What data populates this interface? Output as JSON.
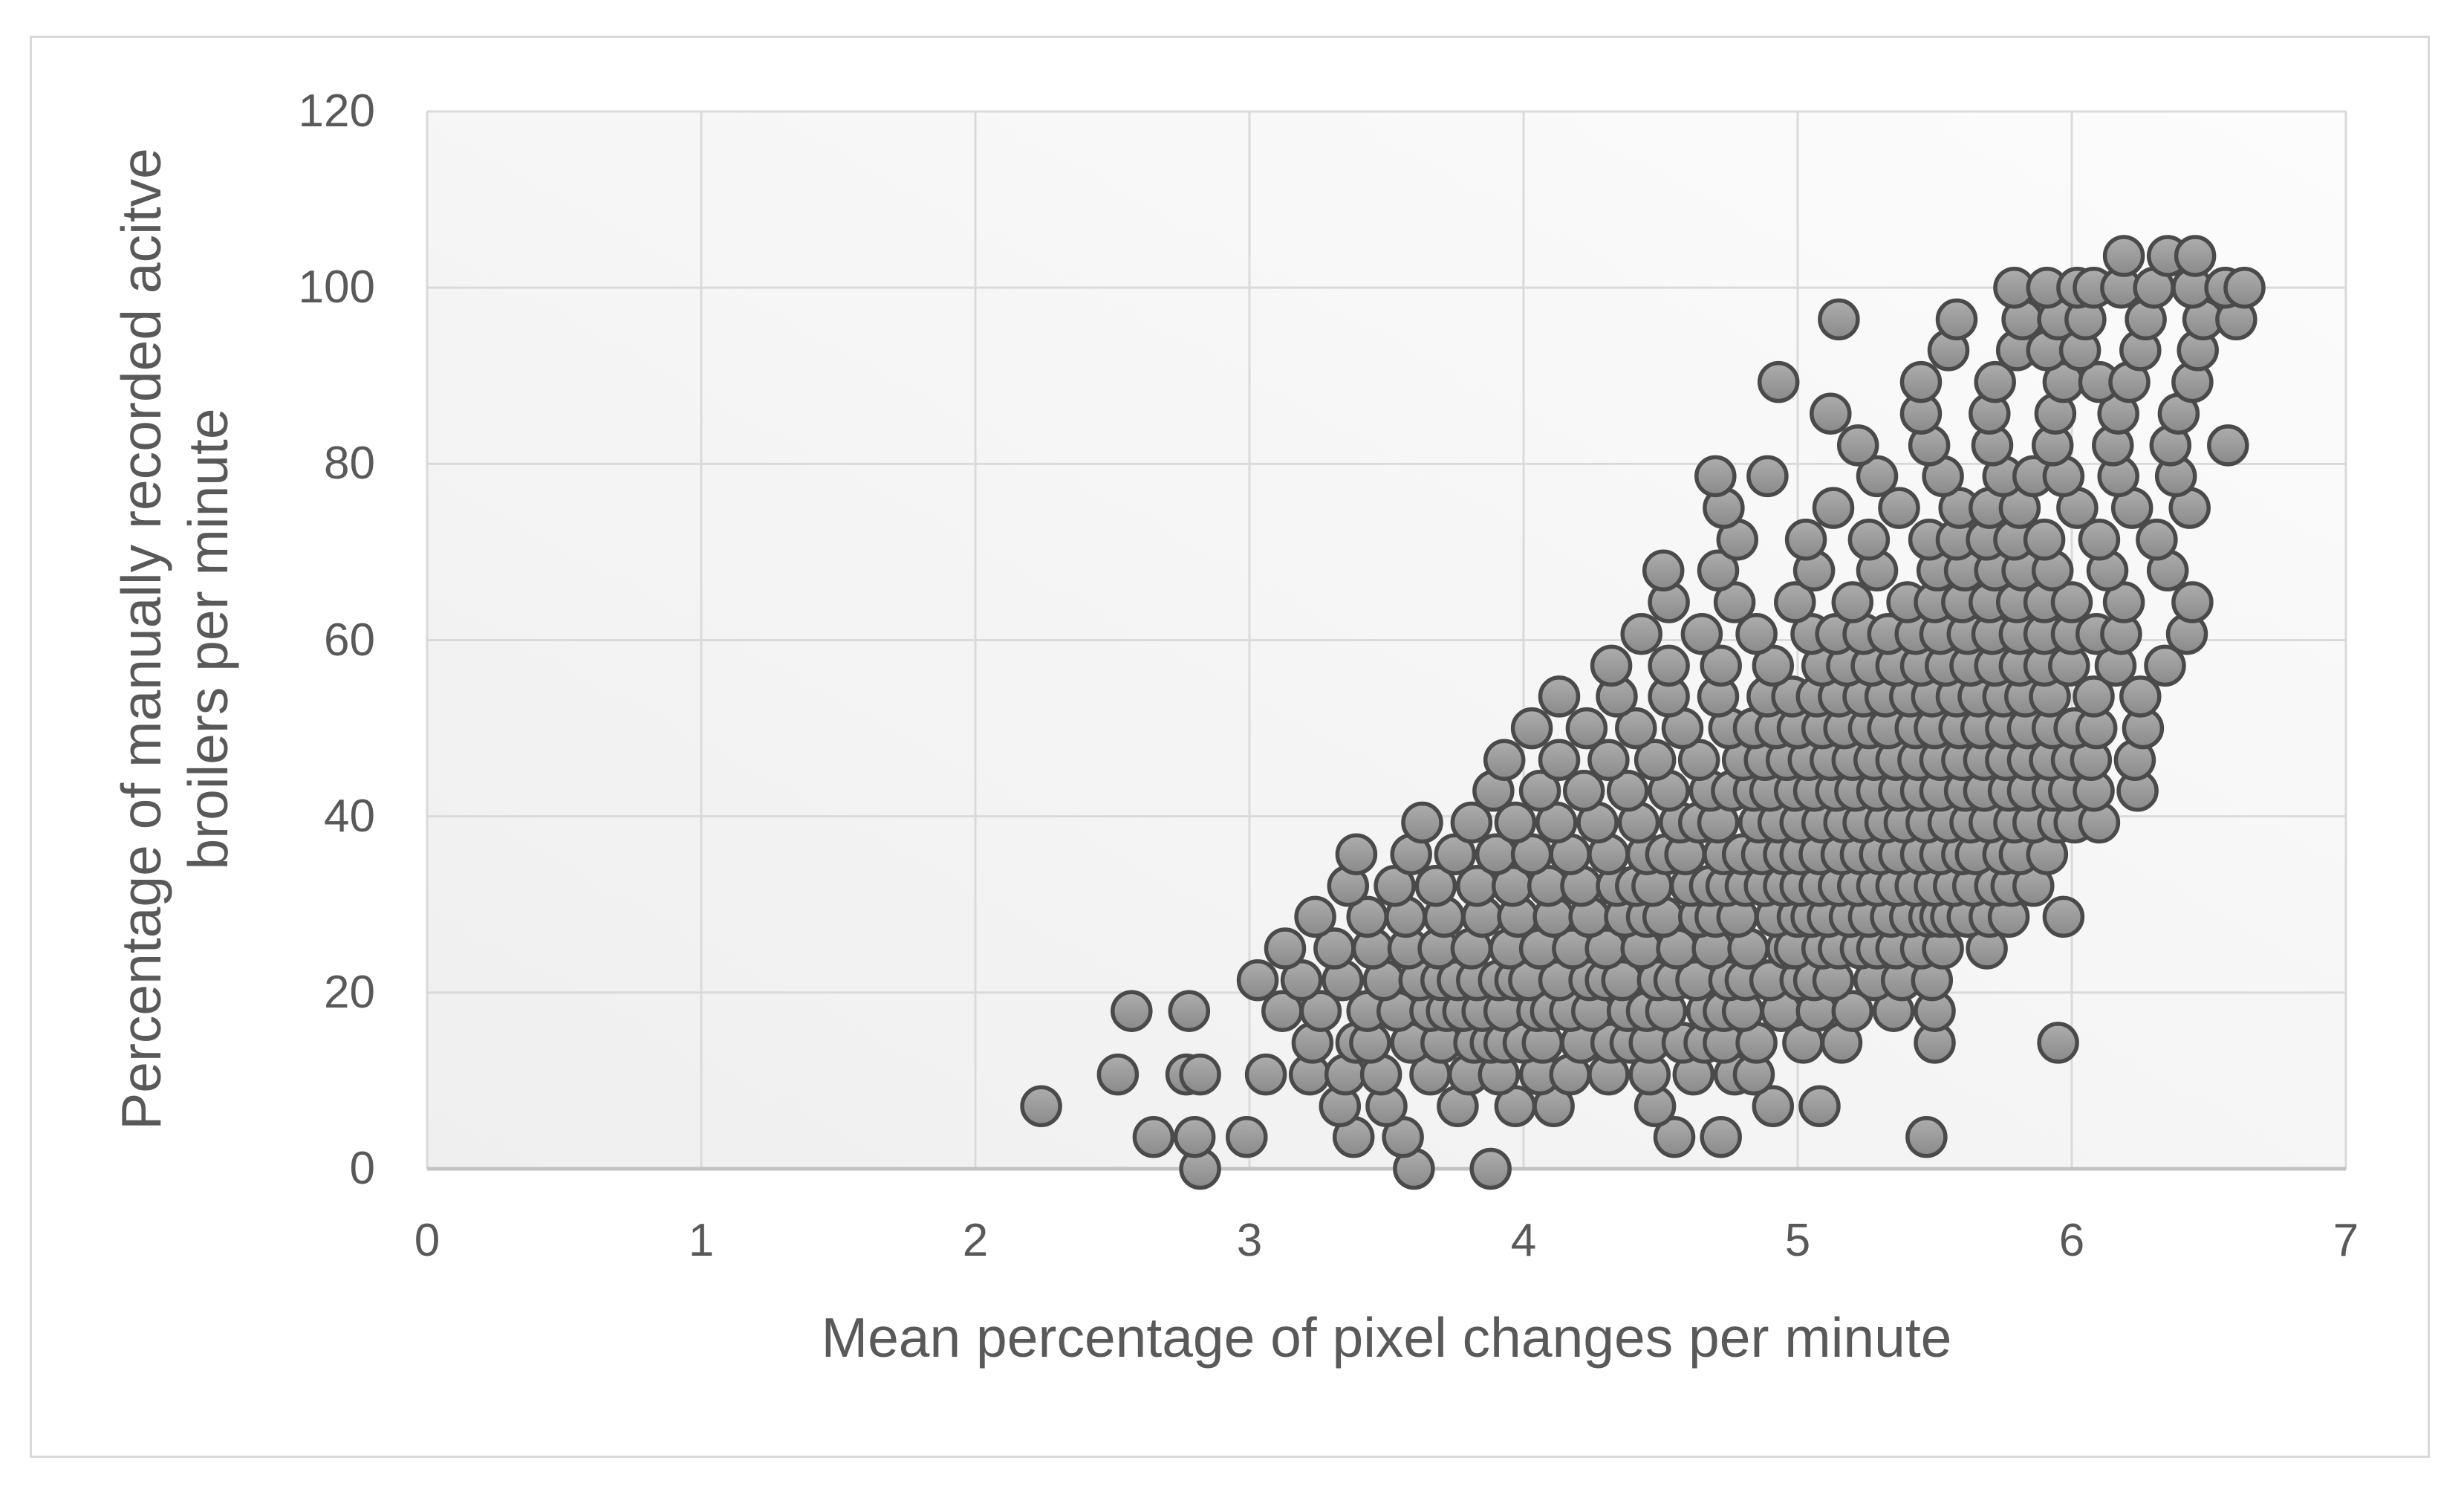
{
  "chart_data": {
    "type": "scatter",
    "title": "",
    "xlabel": "Mean percentage of pixel changes per minute",
    "ylabel_line1": "Percentage of manually recorded acitve",
    "ylabel_line2": "broilers per minute",
    "xlim": [
      0,
      7
    ],
    "ylim": [
      0,
      120
    ],
    "x_ticks": [
      0,
      1,
      2,
      3,
      4,
      5,
      6,
      7
    ],
    "y_ticks": [
      0,
      20,
      40,
      60,
      80,
      100,
      120
    ],
    "grid": true,
    "legend_position": "none",
    "marker": {
      "shape": "circle",
      "fill_light": "#adadad",
      "fill_dark": "#8a8a8a",
      "stroke": "#4a4a4a",
      "radius_px": 25.5,
      "stroke_width_px": 5.5
    },
    "colors": {
      "gridline": "#dadada",
      "axis_line": "#c3c3c3",
      "tick_text": "#595959",
      "title_text": "#595959",
      "plot_bg_from": "#efefef",
      "plot_bg_to": "#fcfcfc",
      "outer_border": "#d9d9d9"
    },
    "rows": [
      {
        "y": 0.0,
        "x": [
          2.82,
          3.6,
          3.88
        ]
      },
      {
        "y": 3.6,
        "x": [
          2.65,
          2.8,
          2.99,
          3.38,
          3.56,
          4.55,
          4.72,
          5.47
        ]
      },
      {
        "y": 7.1,
        "x": [
          2.24,
          3.33,
          3.5,
          3.76,
          3.97,
          4.11,
          4.48,
          4.91,
          5.08
        ]
      },
      {
        "y": 10.7,
        "x": [
          2.52,
          2.77,
          2.82,
          3.06,
          3.22,
          3.35,
          3.48,
          3.66,
          3.8,
          3.91,
          4.06,
          4.17,
          4.31,
          4.46,
          4.62,
          4.77,
          4.84
        ]
      },
      {
        "y": 14.3,
        "x": [
          3.23,
          3.39,
          3.44,
          3.59,
          3.7,
          3.82,
          3.88,
          3.93,
          4.0,
          4.07,
          4.21,
          4.32,
          4.39,
          4.46,
          4.58,
          4.66,
          4.73,
          4.85,
          5.02,
          5.16,
          5.5,
          5.95
        ]
      },
      {
        "y": 17.9,
        "x": [
          2.57,
          2.78,
          3.12,
          3.26,
          3.43,
          3.54,
          3.66,
          3.72,
          3.78,
          3.85,
          3.93,
          4.05,
          4.1,
          4.17,
          4.25,
          4.38,
          4.45,
          4.52,
          4.67,
          4.73,
          4.8,
          4.94,
          5.07,
          5.2,
          5.35,
          5.5
        ]
      },
      {
        "y": 21.4,
        "x": [
          3.03,
          3.19,
          3.34,
          3.49,
          3.62,
          3.7,
          3.76,
          3.83,
          3.91,
          3.97,
          4.02,
          4.13,
          4.24,
          4.3,
          4.36,
          4.49,
          4.55,
          4.63,
          4.75,
          4.81,
          4.9,
          5.01,
          5.06,
          5.13,
          5.28,
          5.38,
          5.49
        ]
      },
      {
        "y": 25.0,
        "x": [
          3.13,
          3.31,
          3.45,
          3.58,
          3.69,
          3.81,
          3.95,
          4.06,
          4.18,
          4.3,
          4.43,
          4.56,
          4.69,
          4.82,
          4.96,
          4.99,
          5.09,
          5.15,
          5.23,
          5.29,
          5.36,
          5.45,
          5.53,
          5.69
        ]
      },
      {
        "y": 28.6,
        "x": [
          3.24,
          3.43,
          3.57,
          3.71,
          3.85,
          3.98,
          4.11,
          4.24,
          4.37,
          4.45,
          4.51,
          4.64,
          4.7,
          4.78,
          4.92,
          5.0,
          5.05,
          5.11,
          5.19,
          5.26,
          5.34,
          5.41,
          5.48,
          5.52,
          5.56,
          5.62,
          5.7,
          5.77,
          5.97
        ]
      },
      {
        "y": 32.1,
        "x": [
          3.36,
          3.53,
          3.68,
          3.83,
          3.96,
          4.09,
          4.21,
          4.34,
          4.41,
          4.47,
          4.61,
          4.68,
          4.74,
          4.81,
          4.88,
          4.95,
          5.01,
          5.08,
          5.15,
          5.22,
          5.29,
          5.36,
          5.43,
          5.5,
          5.57,
          5.64,
          5.72,
          5.78,
          5.86
        ]
      },
      {
        "y": 35.7,
        "x": [
          3.39,
          3.59,
          3.75,
          3.9,
          4.03,
          4.17,
          4.31,
          4.45,
          4.52,
          4.59,
          4.73,
          4.8,
          4.87,
          4.95,
          5.01,
          5.08,
          5.16,
          5.23,
          5.3,
          5.37,
          5.45,
          5.52,
          5.6,
          5.65,
          5.75,
          5.81,
          5.91
        ]
      },
      {
        "y": 39.3,
        "x": [
          3.63,
          3.81,
          3.97,
          4.12,
          4.27,
          4.42,
          4.57,
          4.64,
          4.71,
          4.86,
          4.93,
          5.01,
          5.09,
          5.17,
          5.24,
          5.32,
          5.39,
          5.47,
          5.55,
          5.63,
          5.7,
          5.79,
          5.86,
          5.95,
          6.01,
          6.1
        ]
      },
      {
        "y": 42.9,
        "x": [
          3.89,
          4.06,
          4.22,
          4.38,
          4.53,
          4.68,
          4.76,
          4.84,
          4.9,
          4.99,
          5.06,
          5.14,
          5.21,
          5.29,
          5.37,
          5.45,
          5.52,
          5.61,
          5.68,
          5.77,
          5.84,
          5.93,
          5.99,
          6.08,
          6.24
        ]
      },
      {
        "y": 46.4,
        "x": [
          3.93,
          4.13,
          4.31,
          4.48,
          4.64,
          4.8,
          4.88,
          4.96,
          5.04,
          5.12,
          5.2,
          5.28,
          5.36,
          5.44,
          5.52,
          5.6,
          5.68,
          5.76,
          5.84,
          5.92,
          6.0,
          6.07,
          6.23
        ]
      },
      {
        "y": 50.0,
        "x": [
          4.03,
          4.23,
          4.41,
          4.58,
          4.75,
          4.84,
          4.92,
          5.0,
          5.09,
          5.17,
          5.26,
          5.33,
          5.43,
          5.5,
          5.59,
          5.67,
          5.76,
          5.84,
          5.93,
          6.01,
          6.09,
          6.26
        ]
      },
      {
        "y": 53.6,
        "x": [
          4.13,
          4.34,
          4.53,
          4.71,
          4.89,
          4.98,
          5.07,
          5.15,
          5.24,
          5.32,
          5.41,
          5.49,
          5.58,
          5.66,
          5.75,
          5.83,
          5.92,
          6.08,
          6.25
        ]
      },
      {
        "y": 57.1,
        "x": [
          4.32,
          4.53,
          4.72,
          4.91,
          5.09,
          5.18,
          5.27,
          5.36,
          5.45,
          5.54,
          5.63,
          5.72,
          5.81,
          5.9,
          5.99,
          6.16,
          6.34
        ]
      },
      {
        "y": 60.7,
        "x": [
          4.43,
          4.65,
          4.85,
          5.05,
          5.14,
          5.24,
          5.33,
          5.43,
          5.52,
          5.62,
          5.71,
          5.81,
          5.9,
          6.0,
          6.09,
          6.18,
          6.42
        ]
      },
      {
        "y": 64.3,
        "x": [
          4.53,
          4.77,
          4.99,
          5.2,
          5.4,
          5.5,
          5.6,
          5.7,
          5.8,
          5.9,
          6.0,
          6.19,
          6.44
        ]
      },
      {
        "y": 67.9,
        "x": [
          4.51,
          4.71,
          5.06,
          5.29,
          5.51,
          5.61,
          5.72,
          5.82,
          5.93,
          6.13,
          6.35
        ]
      },
      {
        "y": 71.4,
        "x": [
          4.78,
          5.03,
          5.26,
          5.48,
          5.58,
          5.69,
          5.79,
          5.9,
          6.1,
          6.31
        ]
      },
      {
        "y": 75.0,
        "x": [
          4.73,
          5.13,
          5.37,
          5.59,
          5.7,
          5.81,
          6.02,
          6.22,
          6.43
        ]
      },
      {
        "y": 78.6,
        "x": [
          4.7,
          4.89,
          5.29,
          5.53,
          5.75,
          5.86,
          5.97,
          6.17,
          6.38
        ]
      },
      {
        "y": 82.1,
        "x": [
          5.22,
          5.48,
          5.71,
          5.93,
          6.15,
          6.36,
          6.57
        ]
      },
      {
        "y": 85.7,
        "x": [
          5.12,
          5.45,
          5.7,
          5.94,
          6.17,
          6.39
        ]
      },
      {
        "y": 89.3,
        "x": [
          4.93,
          5.45,
          5.72,
          5.97,
          6.1,
          6.21,
          6.44
        ]
      },
      {
        "y": 92.9,
        "x": [
          5.55,
          5.8,
          5.91,
          6.03,
          6.25,
          6.46
        ]
      },
      {
        "y": 96.4,
        "x": [
          5.15,
          5.58,
          5.82,
          5.95,
          6.05,
          6.27,
          6.48,
          6.6
        ]
      },
      {
        "y": 100.0,
        "x": [
          5.79,
          5.91,
          6.02,
          6.08,
          6.18,
          6.3,
          6.44,
          6.56,
          6.63
        ]
      },
      {
        "y": 103.6,
        "x": [
          6.19,
          6.35,
          6.45
        ]
      }
    ]
  }
}
